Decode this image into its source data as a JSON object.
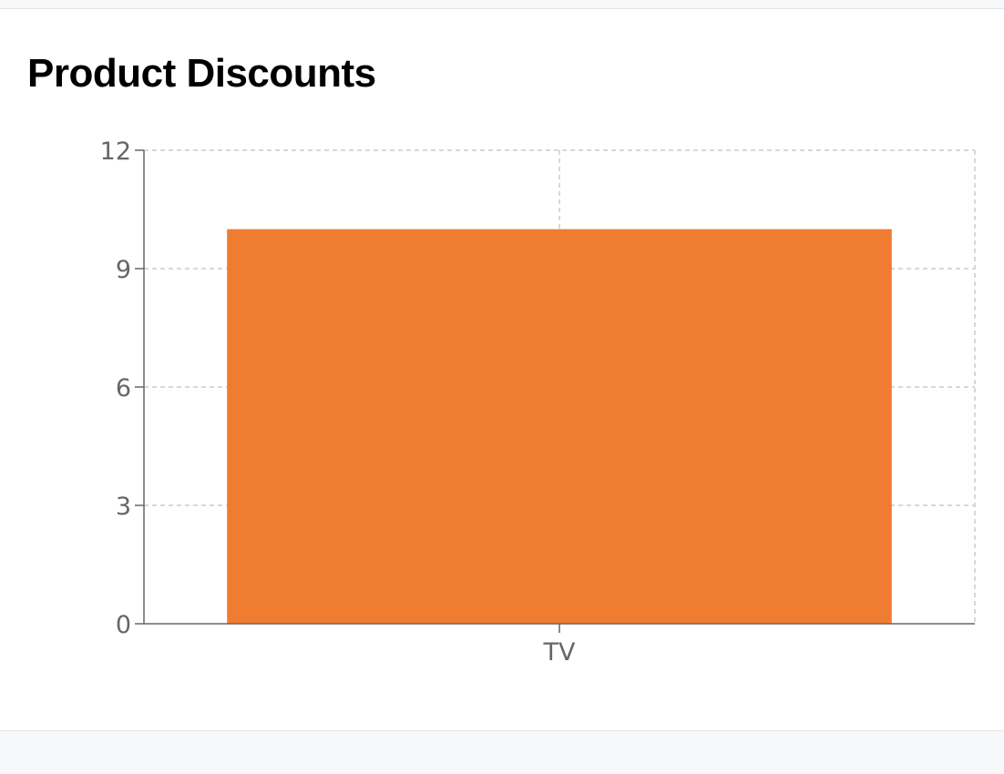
{
  "card": {
    "title": "Product Discounts"
  },
  "colors": {
    "bar": "#ef7c31",
    "grid": "#cccccc",
    "axis": "#666666"
  },
  "chart_data": {
    "type": "bar",
    "categories": [
      "TV"
    ],
    "values": [
      10
    ],
    "ylim": [
      0,
      12
    ],
    "yticks": [
      0,
      3,
      6,
      9,
      12
    ],
    "xlabel": "",
    "ylabel": "",
    "grid": true
  }
}
